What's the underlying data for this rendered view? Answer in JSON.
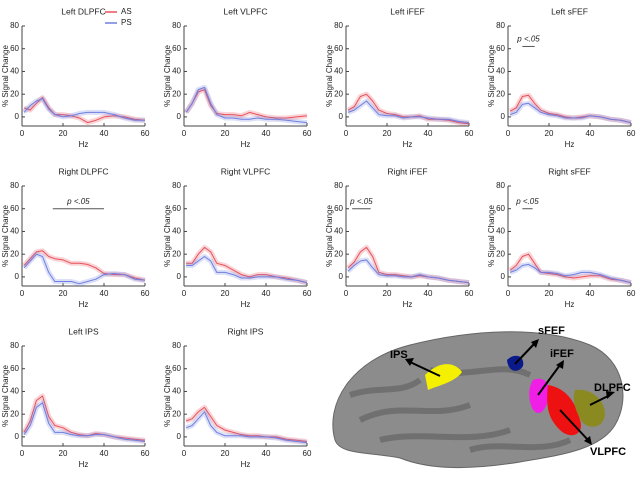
{
  "chart_data": [
    {
      "type": "line",
      "title": "Left DLPFC",
      "xlabel": "Hz",
      "ylabel": "% Signal Change",
      "xlim": [
        0,
        60
      ],
      "ylim": [
        -8,
        80
      ],
      "xticks": [
        0,
        20,
        40,
        60
      ],
      "yticks": [
        0,
        20,
        40,
        60,
        80
      ],
      "x": [
        1,
        4,
        7,
        10,
        13,
        16,
        20,
        24,
        28,
        32,
        36,
        40,
        45,
        50,
        55,
        60
      ],
      "series": [
        {
          "name": "AS",
          "color": "#e8505b",
          "values": [
            8,
            6,
            12,
            17,
            8,
            2,
            2,
            1,
            -1,
            -5,
            -3,
            0,
            1,
            0,
            -2,
            -3
          ]
        },
        {
          "name": "PS",
          "color": "#6f7fe0",
          "values": [
            4,
            10,
            14,
            16,
            7,
            2,
            0,
            1,
            3,
            4,
            4,
            4,
            2,
            -1,
            -3,
            -3
          ]
        }
      ]
    },
    {
      "type": "line",
      "title": "Left VLPFC",
      "xlabel": "Hz",
      "ylabel": "% Signal Change",
      "xlim": [
        0,
        60
      ],
      "ylim": [
        -8,
        80
      ],
      "xticks": [
        0,
        20,
        40,
        60
      ],
      "yticks": [
        0,
        20,
        40,
        60,
        80
      ],
      "x": [
        1,
        4,
        7,
        10,
        13,
        16,
        20,
        24,
        28,
        32,
        36,
        40,
        45,
        50,
        55,
        60
      ],
      "series": [
        {
          "color": "#e8505b",
          "values": [
            4,
            12,
            22,
            24,
            10,
            3,
            2,
            2,
            1,
            4,
            2,
            0,
            -1,
            -1,
            0,
            1
          ]
        },
        {
          "color": "#6f7fe0",
          "values": [
            4,
            12,
            24,
            26,
            12,
            2,
            -1,
            -1,
            -2,
            -2,
            -1,
            -2,
            -2,
            -3,
            -4,
            -5
          ]
        }
      ]
    },
    {
      "type": "line",
      "title": "Left iFEF",
      "xlabel": "Hz",
      "ylabel": "% Signal Change",
      "xlim": [
        0,
        60
      ],
      "ylim": [
        -8,
        80
      ],
      "xticks": [
        0,
        20,
        40,
        60
      ],
      "yticks": [
        0,
        20,
        40,
        60,
        80
      ],
      "x": [
        1,
        4,
        7,
        10,
        13,
        16,
        20,
        24,
        28,
        32,
        36,
        40,
        45,
        50,
        55,
        60
      ],
      "series": [
        {
          "color": "#e8505b",
          "values": [
            6,
            9,
            18,
            20,
            14,
            6,
            3,
            2,
            0,
            0,
            1,
            -2,
            -2,
            -3,
            -5,
            -6
          ]
        },
        {
          "color": "#6f7fe0",
          "values": [
            4,
            6,
            10,
            14,
            8,
            2,
            1,
            1,
            -1,
            0,
            0,
            -1,
            -2,
            -2,
            -4,
            -5
          ]
        }
      ]
    },
    {
      "type": "line",
      "title": "Left sFEF",
      "xlabel": "Hz",
      "ylabel": "% Signal Change",
      "xlim": [
        0,
        60
      ],
      "ylim": [
        -8,
        80
      ],
      "xticks": [
        0,
        20,
        40,
        60
      ],
      "yticks": [
        0,
        20,
        40,
        60,
        80
      ],
      "x": [
        1,
        4,
        7,
        10,
        13,
        16,
        20,
        24,
        28,
        32,
        36,
        40,
        45,
        50,
        55,
        60
      ],
      "annotation": {
        "text": "p <.05",
        "xrange": [
          7,
          13
        ],
        "y": 62
      },
      "series": [
        {
          "color": "#e8505b",
          "values": [
            5,
            8,
            18,
            19,
            12,
            6,
            3,
            2,
            0,
            -1,
            0,
            1,
            0,
            -2,
            -3,
            -5
          ]
        },
        {
          "color": "#6f7fe0",
          "values": [
            2,
            4,
            11,
            12,
            8,
            4,
            2,
            1,
            -1,
            -1,
            -1,
            1,
            0,
            -2,
            -3,
            -5
          ]
        }
      ]
    },
    {
      "type": "line",
      "title": "Right DLPFC",
      "xlabel": "Hz",
      "ylabel": "% Signal Change",
      "xlim": [
        0,
        60
      ],
      "ylim": [
        -8,
        80
      ],
      "xticks": [
        0,
        20,
        40,
        60
      ],
      "yticks": [
        0,
        20,
        40,
        60,
        80
      ],
      "x": [
        1,
        4,
        7,
        10,
        13,
        16,
        20,
        24,
        28,
        32,
        36,
        40,
        45,
        50,
        55,
        60
      ],
      "annotation": {
        "text": "p <.05",
        "xrange": [
          15,
          40
        ],
        "y": 60
      },
      "series": [
        {
          "color": "#e8505b",
          "values": [
            10,
            16,
            22,
            23,
            18,
            16,
            15,
            12,
            12,
            11,
            8,
            3,
            2,
            2,
            -1,
            -3
          ]
        },
        {
          "color": "#6f7fe0",
          "values": [
            8,
            14,
            20,
            18,
            4,
            -4,
            -4,
            -4,
            -6,
            -4,
            -2,
            2,
            3,
            2,
            -2,
            -3
          ]
        }
      ]
    },
    {
      "type": "line",
      "title": "Right VLPFC",
      "xlabel": "Hz",
      "ylabel": "% Signal Change",
      "xlim": [
        0,
        60
      ],
      "ylim": [
        -8,
        80
      ],
      "xticks": [
        0,
        20,
        40,
        60
      ],
      "yticks": [
        0,
        20,
        40,
        60,
        80
      ],
      "x": [
        1,
        4,
        7,
        10,
        13,
        16,
        20,
        24,
        28,
        32,
        36,
        40,
        45,
        50,
        55,
        60
      ],
      "series": [
        {
          "color": "#e8505b",
          "values": [
            12,
            12,
            20,
            26,
            22,
            12,
            10,
            6,
            2,
            0,
            2,
            2,
            0,
            -1,
            -3,
            -5
          ]
        },
        {
          "color": "#6f7fe0",
          "values": [
            10,
            10,
            14,
            18,
            14,
            4,
            4,
            2,
            -1,
            -1,
            0,
            0,
            0,
            -2,
            -3,
            -5
          ]
        }
      ]
    },
    {
      "type": "line",
      "title": "Right iFEF",
      "xlabel": "Hz",
      "ylabel": "% Signal Change",
      "xlim": [
        0,
        60
      ],
      "ylim": [
        -8,
        80
      ],
      "xticks": [
        0,
        20,
        40,
        60
      ],
      "yticks": [
        0,
        20,
        40,
        60,
        80
      ],
      "x": [
        1,
        4,
        7,
        10,
        13,
        16,
        20,
        24,
        28,
        32,
        36,
        40,
        45,
        50,
        55,
        60
      ],
      "annotation": {
        "text": "p <.05",
        "xrange": [
          3,
          12
        ],
        "y": 60
      },
      "series": [
        {
          "color": "#e8505b",
          "values": [
            8,
            13,
            22,
            26,
            18,
            4,
            2,
            2,
            1,
            0,
            1,
            0,
            -1,
            -3,
            -4,
            -5
          ]
        },
        {
          "color": "#6f7fe0",
          "values": [
            5,
            10,
            14,
            15,
            8,
            2,
            1,
            1,
            0,
            0,
            2,
            0,
            -1,
            -3,
            -4,
            -5
          ]
        }
      ]
    },
    {
      "type": "line",
      "title": "Right sFEF",
      "xlabel": "Hz",
      "ylabel": "% Signal Change",
      "xlim": [
        0,
        60
      ],
      "ylim": [
        -8,
        80
      ],
      "xticks": [
        0,
        20,
        40,
        60
      ],
      "yticks": [
        0,
        20,
        40,
        60,
        80
      ],
      "x": [
        1,
        4,
        7,
        10,
        13,
        16,
        20,
        24,
        28,
        32,
        36,
        40,
        45,
        50,
        55,
        60
      ],
      "annotation": {
        "text": "p <.05",
        "xrange": [
          7,
          12
        ],
        "y": 60
      },
      "series": [
        {
          "color": "#e8505b",
          "values": [
            6,
            10,
            18,
            20,
            12,
            4,
            3,
            2,
            0,
            -1,
            0,
            1,
            1,
            -2,
            -3,
            -5
          ]
        },
        {
          "color": "#6f7fe0",
          "values": [
            4,
            6,
            10,
            11,
            8,
            4,
            4,
            3,
            1,
            2,
            4,
            4,
            2,
            -1,
            -3,
            -5
          ]
        }
      ]
    },
    {
      "type": "line",
      "title": "Left IPS",
      "xlabel": "Hz",
      "ylabel": "% Signal Change",
      "xlim": [
        0,
        60
      ],
      "ylim": [
        -8,
        80
      ],
      "xticks": [
        0,
        20,
        40,
        60
      ],
      "yticks": [
        0,
        20,
        40,
        60,
        80
      ],
      "x": [
        1,
        4,
        7,
        10,
        13,
        16,
        20,
        24,
        28,
        32,
        36,
        40,
        45,
        50,
        55,
        60
      ],
      "series": [
        {
          "color": "#e8505b",
          "values": [
            4,
            14,
            32,
            36,
            18,
            10,
            8,
            4,
            2,
            1,
            3,
            2,
            0,
            -1,
            -2,
            -3
          ]
        },
        {
          "color": "#6f7fe0",
          "values": [
            2,
            10,
            26,
            30,
            12,
            4,
            4,
            2,
            1,
            1,
            2,
            2,
            0,
            -2,
            -3,
            -4
          ]
        }
      ]
    },
    {
      "type": "line",
      "title": "Right IPS",
      "xlabel": "Hz",
      "ylabel": "% Signal Change",
      "xlim": [
        0,
        60
      ],
      "ylim": [
        -8,
        80
      ],
      "xticks": [
        0,
        20,
        40,
        60
      ],
      "yticks": [
        0,
        20,
        40,
        60,
        80
      ],
      "x": [
        1,
        4,
        7,
        10,
        13,
        16,
        20,
        24,
        28,
        32,
        36,
        40,
        45,
        50,
        55,
        60
      ],
      "series": [
        {
          "color": "#e8505b",
          "values": [
            14,
            16,
            22,
            26,
            18,
            10,
            6,
            4,
            2,
            1,
            1,
            0,
            0,
            -2,
            -3,
            -4
          ]
        },
        {
          "color": "#6f7fe0",
          "values": [
            8,
            10,
            16,
            22,
            10,
            4,
            1,
            1,
            1,
            0,
            0,
            0,
            -1,
            -3,
            -4,
            -5
          ]
        }
      ]
    }
  ],
  "brain": {
    "labels": [
      "IPS",
      "sFEF",
      "iFEF",
      "DLPFC",
      "VLPFC"
    ]
  }
}
